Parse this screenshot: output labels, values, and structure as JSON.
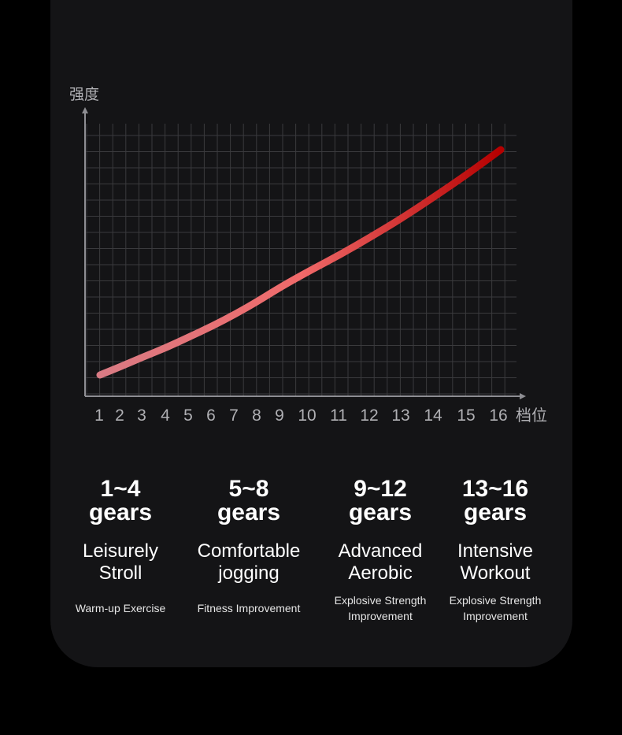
{
  "chart_data": {
    "type": "line",
    "ylabel": "强度",
    "xlabel": "档位",
    "x": [
      1,
      2,
      3,
      4,
      5,
      6,
      7,
      8,
      9,
      10,
      11,
      12,
      13,
      14,
      15,
      16
    ],
    "y": [
      1.0,
      1.7,
      2.5,
      3.3,
      4.2,
      5.1,
      6.1,
      7.2,
      8.4,
      9.7,
      11.1,
      12.6,
      14.2,
      16.0,
      17.9,
      19.9
    ],
    "ylim": [
      0,
      22
    ],
    "grid": true,
    "line_color_start": "#d97b84",
    "line_color_mid": "#f06a6a",
    "line_color_end": "#b50000"
  },
  "levels": [
    {
      "range": "1~4\ngears",
      "title": "Leisurely\nStroll",
      "desc": "Warm-up Exercise"
    },
    {
      "range": "5~8\ngears",
      "title": "Comfortable\njogging",
      "desc": "Fitness Improvement"
    },
    {
      "range": "9~12\ngears",
      "title": "Advanced\nAerobic",
      "desc": "Explosive Strength\nImprovement"
    },
    {
      "range": "13~16\ngears",
      "title": "Intensive\nWorkout",
      "desc": "Explosive Strength\nImprovement"
    }
  ],
  "colors": {
    "background": "#000000",
    "card": "#141416",
    "grid": "#3a3a3d",
    "axis": "#8e8e93",
    "tick_text": "#b0b0b4"
  }
}
